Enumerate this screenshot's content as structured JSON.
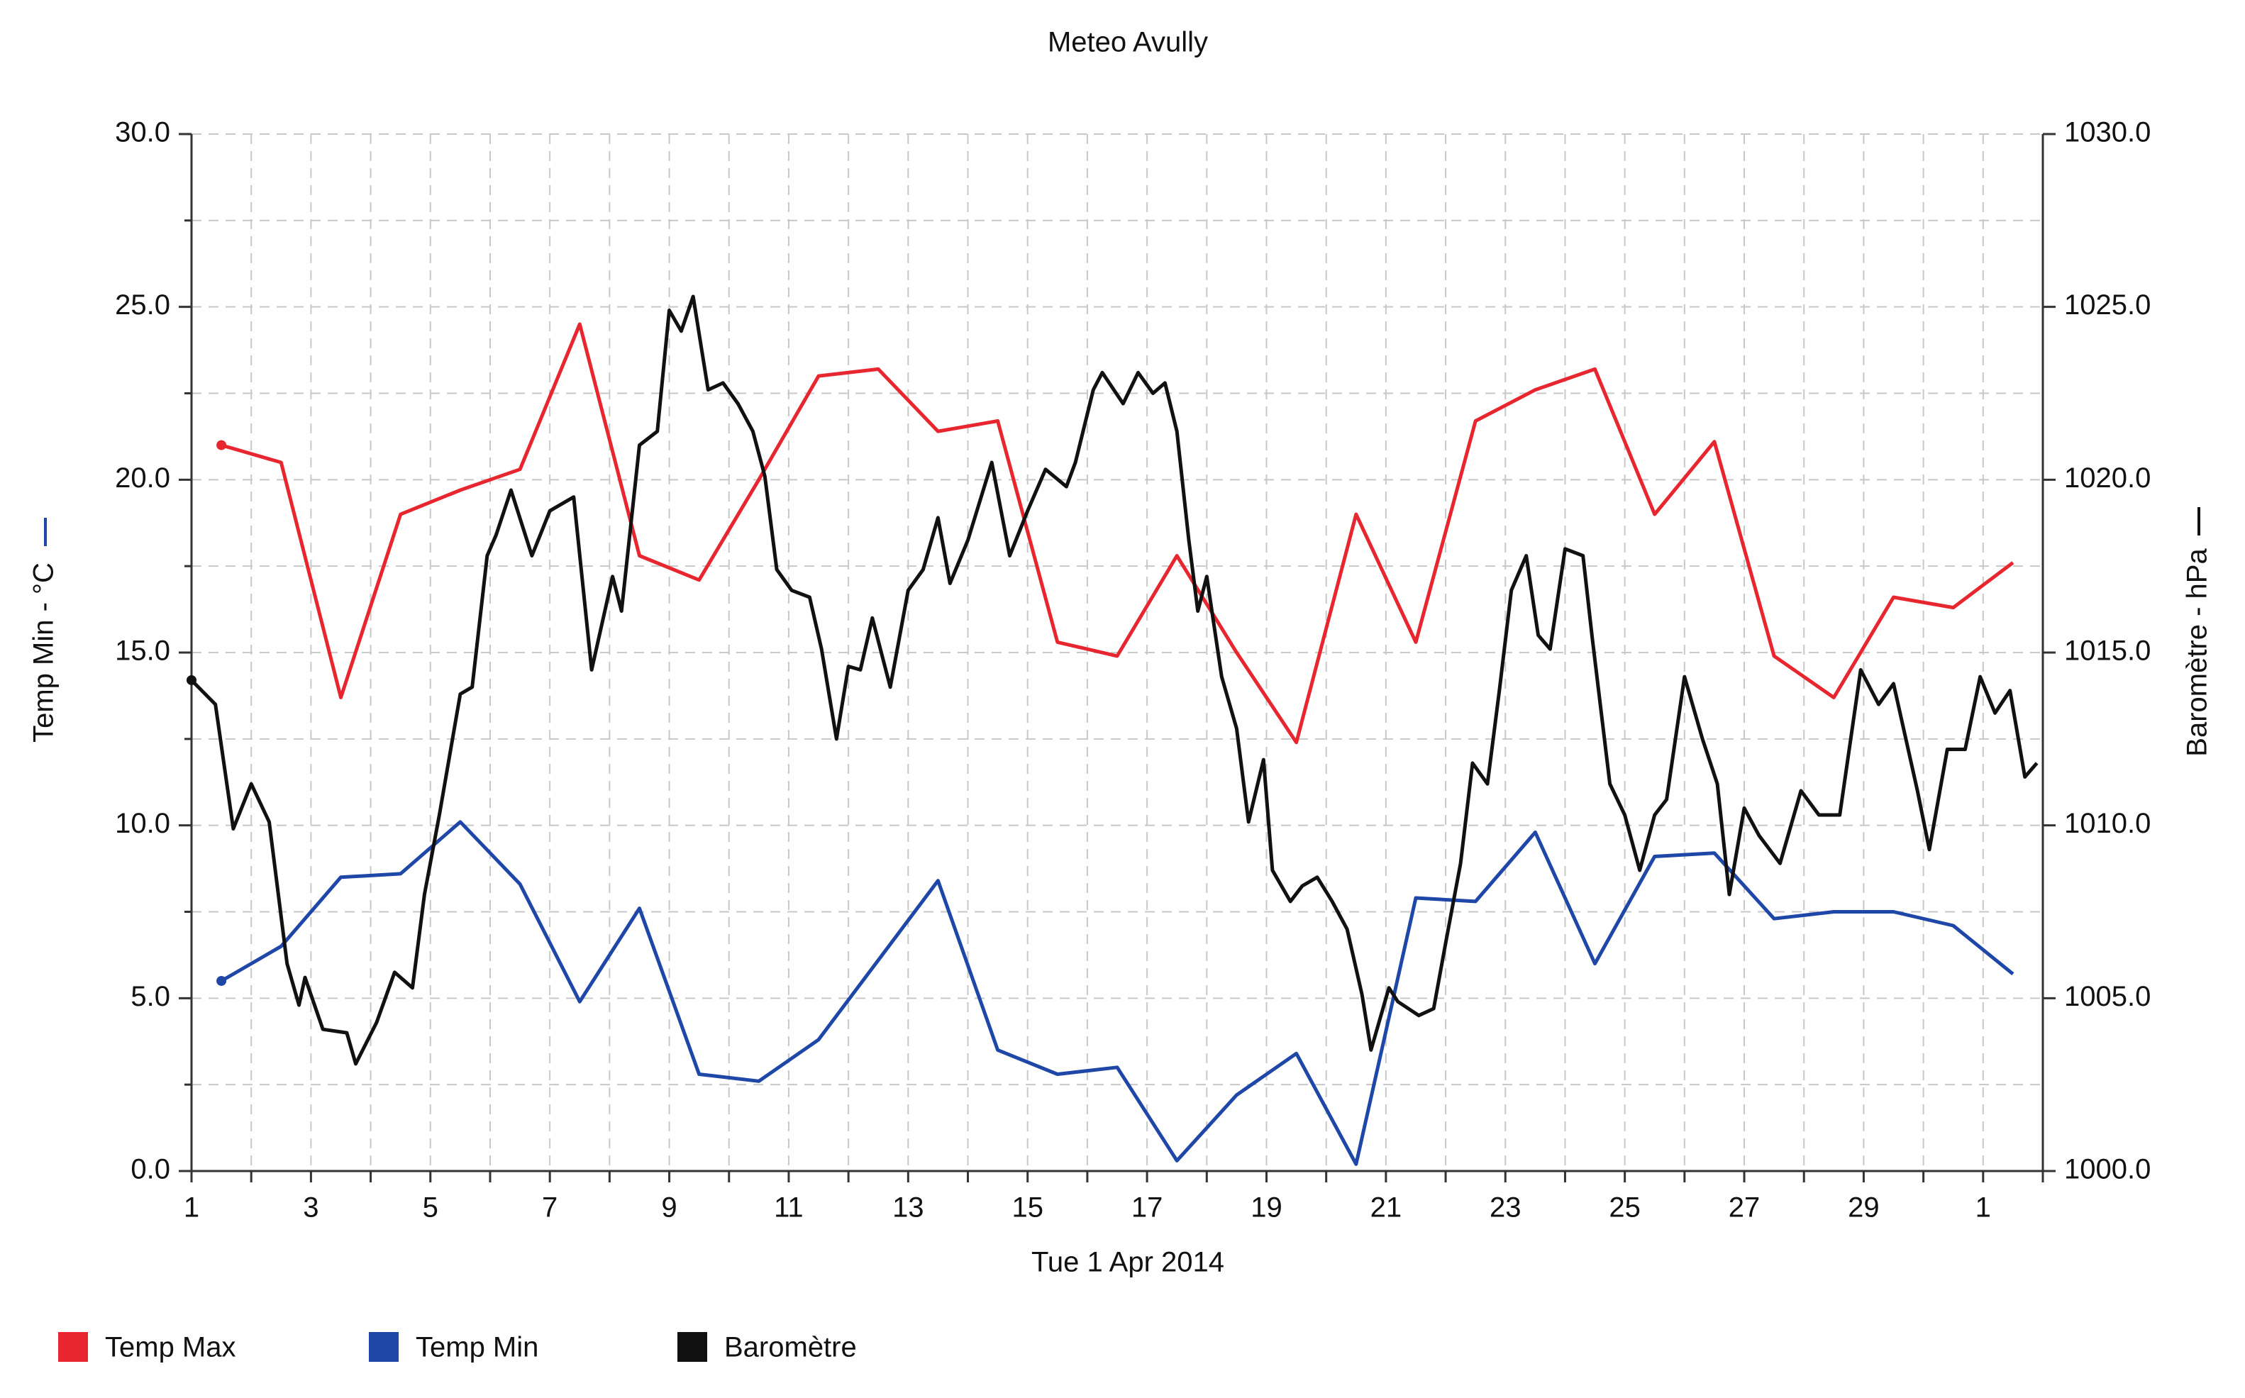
{
  "chart_data": {
    "type": "line",
    "title": "Meteo  Avully",
    "x_label": "Tue 1 Apr 2014",
    "y_label": "Temp Min - °C",
    "y2_label": "Baromètre - hPa",
    "xlim": [
      1,
      32
    ],
    "xticks": [
      1,
      3,
      5,
      7,
      9,
      11,
      13,
      15,
      17,
      19,
      21,
      23,
      25,
      27,
      29,
      {
        "value": 31,
        "label": "1"
      }
    ],
    "xminorticks": [
      2,
      4,
      6,
      8,
      10,
      12,
      14,
      16,
      18,
      20,
      22,
      24,
      26,
      28,
      30,
      32
    ],
    "ylim": [
      0,
      30
    ],
    "yticks": [
      {
        "value": 0,
        "label": "0.0"
      },
      {
        "value": 5,
        "label": "5.0"
      },
      {
        "value": 10,
        "label": "10.0"
      },
      {
        "value": 15,
        "label": "15.0"
      },
      {
        "value": 20,
        "label": "20.0"
      },
      {
        "value": 25,
        "label": "25.0"
      },
      {
        "value": 30,
        "label": "30.0"
      }
    ],
    "yminorticks": [
      2.5,
      7.5,
      12.5,
      17.5,
      22.5,
      27.5
    ],
    "y2lim": [
      1000,
      1030
    ],
    "y2ticks": [
      {
        "value": 1000,
        "label": "1000.0"
      },
      {
        "value": 1005,
        "label": "1005.0"
      },
      {
        "value": 1010,
        "label": "1010.0"
      },
      {
        "value": 1015,
        "label": "1015.0"
      },
      {
        "value": 1020,
        "label": "1020.0"
      },
      {
        "value": 1025,
        "label": "1025.0"
      },
      {
        "value": 1030,
        "label": "1030.0"
      }
    ],
    "grid": true,
    "legend": "bottom",
    "series": [
      {
        "name": "Temp Max",
        "color": "#e8262f",
        "x": [
          1.5,
          2.5,
          3.5,
          4.5,
          5.5,
          6.5,
          7.5,
          8.5,
          9.5,
          10.5,
          11.5,
          12.5,
          13.5,
          14.5,
          15.5,
          16.5,
          17.5,
          18.5,
          19.5,
          20.5,
          21.5,
          22.5,
          23.5,
          24.5,
          25.5,
          26.5,
          27.5,
          28.5,
          29.5,
          30.5,
          31.5
        ],
        "values": [
          21.0,
          20.5,
          13.7,
          19.0,
          19.7,
          20.3,
          24.5,
          17.8,
          17.1,
          20.0,
          23.0,
          23.2,
          21.4,
          21.7,
          15.3,
          14.9,
          17.8,
          15.0,
          12.4,
          19.0,
          15.3,
          21.7,
          22.6,
          23.2,
          19.0,
          21.1,
          14.9,
          13.7,
          16.6,
          16.3,
          17.6
        ]
      },
      {
        "name": "Temp Min",
        "color": "#1f47a8",
        "x": [
          1.5,
          2.5,
          3.5,
          4.5,
          5.5,
          6.5,
          7.5,
          8.5,
          9.5,
          10.5,
          11.5,
          12.5,
          13.5,
          14.5,
          15.5,
          16.5,
          17.5,
          18.5,
          19.5,
          20.5,
          21.5,
          22.5,
          23.5,
          24.5,
          25.5,
          26.5,
          27.5,
          28.5,
          29.5,
          30.5,
          31.5
        ],
        "values": [
          5.5,
          6.5,
          8.5,
          8.6,
          10.1,
          8.3,
          4.9,
          7.6,
          2.8,
          2.6,
          3.8,
          6.1,
          8.4,
          3.5,
          2.8,
          3.0,
          0.3,
          2.2,
          3.4,
          0.2,
          7.9,
          7.8,
          9.8,
          6.0,
          9.1,
          9.2,
          7.3,
          7.5,
          7.5,
          7.1,
          5.7
        ]
      },
      {
        "name": "Baromètre",
        "color": "#111111",
        "axis": "y2",
        "x": [
          1.0,
          1.4,
          1.7,
          2.0,
          2.3,
          2.6,
          2.8,
          2.9,
          3.2,
          3.6,
          3.75,
          4.1,
          4.4,
          4.7,
          4.9,
          5.15,
          5.5,
          5.7,
          5.95,
          6.1,
          6.35,
          6.7,
          7.0,
          7.4,
          7.7,
          8.05,
          8.2,
          8.5,
          8.8,
          9.0,
          9.2,
          9.4,
          9.65,
          9.9,
          10.15,
          10.4,
          10.6,
          10.8,
          11.05,
          11.35,
          11.55,
          11.8,
          12.0,
          12.2,
          12.4,
          12.7,
          13.0,
          13.25,
          13.5,
          13.7,
          14.0,
          14.4,
          14.7,
          15.0,
          15.3,
          15.65,
          15.8,
          16.1,
          16.25,
          16.6,
          16.85,
          17.1,
          17.3,
          17.5,
          17.7,
          17.85,
          18.0,
          18.25,
          18.5,
          18.7,
          18.95,
          19.1,
          19.4,
          19.6,
          19.85,
          20.1,
          20.35,
          20.6,
          20.75,
          21.05,
          21.2,
          21.55,
          21.8,
          22.0,
          22.25,
          22.45,
          22.7,
          22.9,
          23.1,
          23.35,
          23.55,
          23.75,
          24.0,
          24.3,
          24.45,
          24.75,
          25.0,
          25.25,
          25.5,
          25.7,
          26.0,
          26.3,
          26.55,
          26.75,
          27.0,
          27.25,
          27.6,
          27.95,
          28.25,
          28.6,
          28.95,
          29.25,
          29.5,
          29.9,
          30.1,
          30.4,
          30.7,
          30.95,
          31.2,
          31.45,
          31.7,
          31.9
        ],
        "values": [
          1014.2,
          1013.5,
          1009.9,
          1011.2,
          1010.1,
          1006.0,
          1004.8,
          1005.6,
          1004.1,
          1004.0,
          1003.1,
          1004.3,
          1005.75,
          1005.3,
          1008.0,
          1010.3,
          1013.8,
          1014.0,
          1017.8,
          1018.4,
          1019.7,
          1017.8,
          1019.1,
          1019.5,
          1014.5,
          1017.2,
          1016.2,
          1021.0,
          1021.4,
          1024.9,
          1024.3,
          1025.3,
          1022.6,
          1022.8,
          1022.2,
          1021.4,
          1020.1,
          1017.4,
          1016.8,
          1016.6,
          1015.1,
          1012.5,
          1014.6,
          1014.5,
          1016.0,
          1014.0,
          1016.8,
          1017.4,
          1018.9,
          1017.0,
          1018.25,
          1020.5,
          1017.8,
          1019.1,
          1020.3,
          1019.8,
          1020.5,
          1022.6,
          1023.1,
          1022.2,
          1023.1,
          1022.5,
          1022.8,
          1021.4,
          1018.25,
          1016.2,
          1017.2,
          1014.3,
          1012.8,
          1010.1,
          1011.9,
          1008.7,
          1007.8,
          1008.25,
          1008.5,
          1007.8,
          1007.0,
          1005.1,
          1003.5,
          1005.3,
          1004.9,
          1004.5,
          1004.7,
          1006.6,
          1008.9,
          1011.8,
          1011.2,
          1013.9,
          1016.8,
          1017.8,
          1015.5,
          1015.1,
          1018.0,
          1017.8,
          1015.5,
          1011.2,
          1010.3,
          1008.7,
          1010.3,
          1010.75,
          1014.3,
          1012.5,
          1011.2,
          1008.0,
          1010.5,
          1009.7,
          1008.9,
          1011.0,
          1010.3,
          1010.3,
          1014.5,
          1013.5,
          1014.1,
          1011.0,
          1009.3,
          1012.2,
          1012.2,
          1014.3,
          1013.25,
          1013.9,
          1011.4,
          1011.8
        ]
      }
    ]
  }
}
